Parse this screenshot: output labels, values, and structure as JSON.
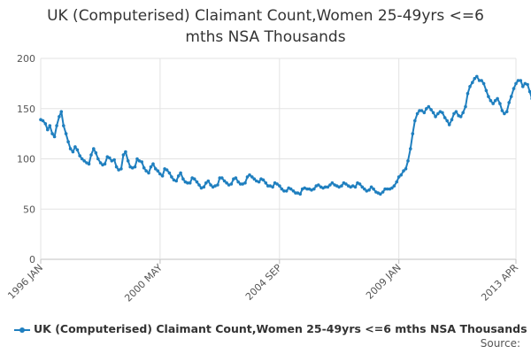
{
  "chart_data": {
    "type": "line",
    "title_lines": [
      "UK (Computerised) Claimant Count,Women 25-49yrs <=6",
      "mths NSA Thousands"
    ],
    "xlabel": "",
    "ylabel": "",
    "ylim": [
      0,
      200
    ],
    "yticks": [
      "0",
      "50",
      "100",
      "150",
      "200"
    ],
    "xticks": [
      {
        "label": "1996 JAN",
        "x": 1996.0
      },
      {
        "label": "2000 MAY",
        "x": 2000.333
      },
      {
        "label": "2004 SEP",
        "x": 2004.667
      },
      {
        "label": "2009 JAN",
        "x": 2009.0
      },
      {
        "label": "2013 APR",
        "x": 2013.25
      }
    ],
    "xlim": [
      1996.0,
      2013.25
    ],
    "grid": true,
    "legend_position": "bottom",
    "series": [
      {
        "name": "UK (Computerised) Claimant Count,Women 25-49yrs <=6 mths NSA Thousands",
        "color": "#1f7fbf",
        "points": [
          [
            1996.0,
            139
          ],
          [
            1996.08,
            138
          ],
          [
            1996.17,
            135
          ],
          [
            1996.25,
            129
          ],
          [
            1996.33,
            133
          ],
          [
            1996.42,
            125
          ],
          [
            1996.5,
            122
          ],
          [
            1996.58,
            133
          ],
          [
            1996.67,
            142
          ],
          [
            1996.75,
            147
          ],
          [
            1996.83,
            133
          ],
          [
            1996.92,
            125
          ],
          [
            1997.0,
            117
          ],
          [
            1997.08,
            110
          ],
          [
            1997.17,
            107
          ],
          [
            1997.25,
            112
          ],
          [
            1997.33,
            109
          ],
          [
            1997.42,
            103
          ],
          [
            1997.5,
            100
          ],
          [
            1997.58,
            98
          ],
          [
            1997.67,
            96
          ],
          [
            1997.75,
            95
          ],
          [
            1997.83,
            104
          ],
          [
            1997.92,
            110
          ],
          [
            1998.0,
            106
          ],
          [
            1998.08,
            100
          ],
          [
            1998.17,
            96
          ],
          [
            1998.25,
            94
          ],
          [
            1998.33,
            95
          ],
          [
            1998.42,
            102
          ],
          [
            1998.5,
            101
          ],
          [
            1998.58,
            98
          ],
          [
            1998.67,
            99
          ],
          [
            1998.75,
            92
          ],
          [
            1998.83,
            89
          ],
          [
            1998.92,
            90
          ],
          [
            1999.0,
            104
          ],
          [
            1999.08,
            107
          ],
          [
            1999.17,
            98
          ],
          [
            1999.25,
            92
          ],
          [
            1999.33,
            91
          ],
          [
            1999.42,
            92
          ],
          [
            1999.5,
            100
          ],
          [
            1999.58,
            98
          ],
          [
            1999.67,
            97
          ],
          [
            1999.75,
            91
          ],
          [
            1999.83,
            88
          ],
          [
            1999.92,
            86
          ],
          [
            2000.0,
            92
          ],
          [
            2000.08,
            95
          ],
          [
            2000.17,
            90
          ],
          [
            2000.25,
            88
          ],
          [
            2000.33,
            85
          ],
          [
            2000.42,
            83
          ],
          [
            2000.5,
            90
          ],
          [
            2000.58,
            89
          ],
          [
            2000.67,
            86
          ],
          [
            2000.75,
            82
          ],
          [
            2000.83,
            79
          ],
          [
            2000.92,
            78
          ],
          [
            2001.0,
            83
          ],
          [
            2001.08,
            86
          ],
          [
            2001.17,
            80
          ],
          [
            2001.25,
            77
          ],
          [
            2001.33,
            76
          ],
          [
            2001.42,
            76
          ],
          [
            2001.5,
            81
          ],
          [
            2001.58,
            80
          ],
          [
            2001.67,
            77
          ],
          [
            2001.75,
            74
          ],
          [
            2001.83,
            71
          ],
          [
            2001.92,
            72
          ],
          [
            2002.0,
            76
          ],
          [
            2002.08,
            78
          ],
          [
            2002.17,
            74
          ],
          [
            2002.25,
            72
          ],
          [
            2002.33,
            73
          ],
          [
            2002.42,
            74
          ],
          [
            2002.5,
            81
          ],
          [
            2002.58,
            81
          ],
          [
            2002.67,
            78
          ],
          [
            2002.75,
            76
          ],
          [
            2002.83,
            74
          ],
          [
            2002.92,
            75
          ],
          [
            2003.0,
            80
          ],
          [
            2003.08,
            81
          ],
          [
            2003.17,
            77
          ],
          [
            2003.25,
            75
          ],
          [
            2003.33,
            75
          ],
          [
            2003.42,
            76
          ],
          [
            2003.5,
            82
          ],
          [
            2003.58,
            84
          ],
          [
            2003.67,
            82
          ],
          [
            2003.75,
            80
          ],
          [
            2003.83,
            78
          ],
          [
            2003.92,
            77
          ],
          [
            2004.0,
            80
          ],
          [
            2004.08,
            79
          ],
          [
            2004.17,
            76
          ],
          [
            2004.25,
            73
          ],
          [
            2004.33,
            73
          ],
          [
            2004.42,
            72
          ],
          [
            2004.5,
            76
          ],
          [
            2004.58,
            75
          ],
          [
            2004.67,
            73
          ],
          [
            2004.75,
            70
          ],
          [
            2004.83,
            68
          ],
          [
            2004.92,
            68
          ],
          [
            2005.0,
            71
          ],
          [
            2005.08,
            70
          ],
          [
            2005.17,
            68
          ],
          [
            2005.25,
            66
          ],
          [
            2005.33,
            66
          ],
          [
            2005.42,
            65
          ],
          [
            2005.5,
            70
          ],
          [
            2005.58,
            71
          ],
          [
            2005.67,
            70
          ],
          [
            2005.75,
            70
          ],
          [
            2005.83,
            69
          ],
          [
            2005.92,
            70
          ],
          [
            2006.0,
            73
          ],
          [
            2006.08,
            74
          ],
          [
            2006.17,
            72
          ],
          [
            2006.25,
            71
          ],
          [
            2006.33,
            72
          ],
          [
            2006.42,
            72
          ],
          [
            2006.5,
            74
          ],
          [
            2006.58,
            76
          ],
          [
            2006.67,
            74
          ],
          [
            2006.75,
            73
          ],
          [
            2006.83,
            72
          ],
          [
            2006.92,
            73
          ],
          [
            2007.0,
            76
          ],
          [
            2007.08,
            75
          ],
          [
            2007.17,
            73
          ],
          [
            2007.25,
            72
          ],
          [
            2007.33,
            73
          ],
          [
            2007.42,
            72
          ],
          [
            2007.5,
            76
          ],
          [
            2007.58,
            75
          ],
          [
            2007.67,
            72
          ],
          [
            2007.75,
            70
          ],
          [
            2007.83,
            68
          ],
          [
            2007.92,
            69
          ],
          [
            2008.0,
            72
          ],
          [
            2008.08,
            70
          ],
          [
            2008.17,
            67
          ],
          [
            2008.25,
            66
          ],
          [
            2008.33,
            65
          ],
          [
            2008.42,
            67
          ],
          [
            2008.5,
            70
          ],
          [
            2008.58,
            70
          ],
          [
            2008.67,
            70
          ],
          [
            2008.75,
            71
          ],
          [
            2008.83,
            73
          ],
          [
            2008.92,
            77
          ],
          [
            2009.0,
            82
          ],
          [
            2009.08,
            84
          ],
          [
            2009.17,
            88
          ],
          [
            2009.25,
            90
          ],
          [
            2009.33,
            98
          ],
          [
            2009.42,
            110
          ],
          [
            2009.5,
            125
          ],
          [
            2009.58,
            138
          ],
          [
            2009.67,
            145
          ],
          [
            2009.75,
            148
          ],
          [
            2009.83,
            148
          ],
          [
            2009.92,
            146
          ],
          [
            2010.0,
            150
          ],
          [
            2010.08,
            152
          ],
          [
            2010.17,
            149
          ],
          [
            2010.25,
            146
          ],
          [
            2010.33,
            142
          ],
          [
            2010.42,
            145
          ],
          [
            2010.5,
            147
          ],
          [
            2010.58,
            146
          ],
          [
            2010.67,
            141
          ],
          [
            2010.75,
            138
          ],
          [
            2010.83,
            134
          ],
          [
            2010.92,
            139
          ],
          [
            2011.0,
            145
          ],
          [
            2011.08,
            147
          ],
          [
            2011.17,
            143
          ],
          [
            2011.25,
            142
          ],
          [
            2011.33,
            146
          ],
          [
            2011.42,
            152
          ],
          [
            2011.5,
            165
          ],
          [
            2011.58,
            172
          ],
          [
            2011.67,
            176
          ],
          [
            2011.75,
            180
          ],
          [
            2011.83,
            182
          ],
          [
            2011.92,
            178
          ],
          [
            2012.0,
            178
          ],
          [
            2012.08,
            175
          ],
          [
            2012.17,
            168
          ],
          [
            2012.25,
            162
          ],
          [
            2012.33,
            158
          ],
          [
            2012.42,
            155
          ],
          [
            2012.5,
            158
          ],
          [
            2012.58,
            160
          ],
          [
            2012.67,
            155
          ],
          [
            2012.75,
            148
          ],
          [
            2012.83,
            145
          ],
          [
            2012.92,
            147
          ],
          [
            2013.0,
            156
          ],
          [
            2013.08,
            162
          ],
          [
            2013.17,
            170
          ],
          [
            2013.25,
            175
          ],
          [
            2013.33,
            178
          ],
          [
            2013.42,
            178
          ],
          [
            2013.5,
            172
          ],
          [
            2013.58,
            175
          ],
          [
            2013.67,
            174
          ],
          [
            2013.75,
            167
          ],
          [
            2013.83,
            160
          ],
          [
            2013.92,
            154
          ]
        ]
      }
    ]
  },
  "legend": {
    "label": "UK (Computerised) Claimant Count,Women 25-49yrs <=6 mths NSA Thousands"
  },
  "source": {
    "label": "Source:"
  }
}
